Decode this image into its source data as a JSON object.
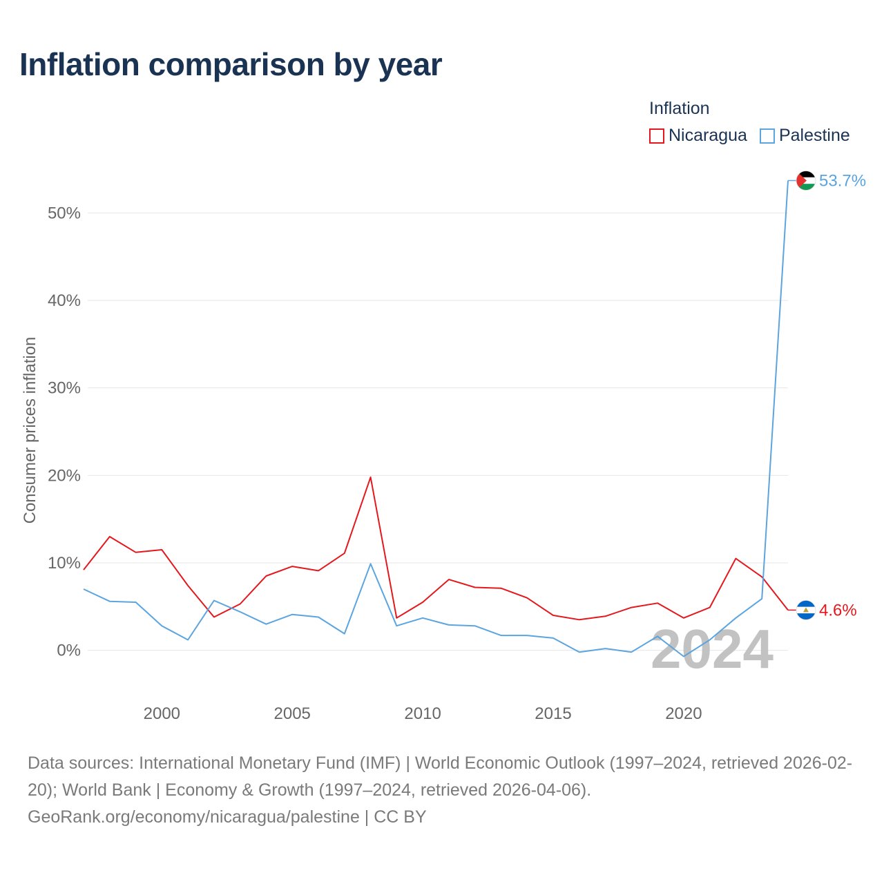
{
  "title": "Inflation comparison by year",
  "legend": {
    "title": "Inflation",
    "items": [
      {
        "label": "Nicaragua",
        "color": "#e4181c"
      },
      {
        "label": "Palestine",
        "color": "#5aa4e0"
      }
    ]
  },
  "source": {
    "line1": "Data sources: International Monetary Fund (IMF) | World Economic Outlook (1997–2024, retrieved 2026-02-20); World Bank | Economy & Growth (1997–2024, retrieved 2026-04-06).",
    "line2": "GeoRank.org/economy/nicaragua/palestine | CC BY"
  },
  "chart_data": {
    "type": "line",
    "title": "Inflation comparison by year",
    "xlabel": "",
    "ylabel": "Consumer prices inflation",
    "xlim": [
      1997,
      2024
    ],
    "ylim": [
      -5,
      55
    ],
    "x_ticks": [
      2000,
      2005,
      2010,
      2015,
      2020
    ],
    "y_ticks": [
      0,
      10,
      20,
      30,
      40,
      50
    ],
    "y_tick_labels": [
      "0%",
      "10%",
      "20%",
      "30%",
      "40%",
      "50%"
    ],
    "grid": true,
    "legend_position": "top-right",
    "year_label": "2024",
    "x": [
      1997,
      1998,
      1999,
      2000,
      2001,
      2002,
      2003,
      2004,
      2005,
      2006,
      2007,
      2008,
      2009,
      2010,
      2011,
      2012,
      2013,
      2014,
      2015,
      2016,
      2017,
      2018,
      2019,
      2020,
      2021,
      2022,
      2023,
      2024
    ],
    "series": [
      {
        "name": "Nicaragua",
        "color": "#e4181c",
        "end_label": "4.6%",
        "flag": "nicaragua-flag-icon",
        "values": [
          9.2,
          13.0,
          11.2,
          11.5,
          7.4,
          3.8,
          5.3,
          8.5,
          9.6,
          9.1,
          11.1,
          19.8,
          3.7,
          5.5,
          8.1,
          7.2,
          7.1,
          6.0,
          4.0,
          3.5,
          3.9,
          4.9,
          5.4,
          3.7,
          4.9,
          10.5,
          8.4,
          4.6
        ]
      },
      {
        "name": "Palestine",
        "color": "#5aa4e0",
        "end_label": "53.7%",
        "flag": "palestine-flag-icon",
        "values": [
          7.0,
          5.6,
          5.5,
          2.8,
          1.2,
          5.7,
          4.4,
          3.0,
          4.1,
          3.8,
          1.9,
          9.9,
          2.8,
          3.7,
          2.9,
          2.8,
          1.7,
          1.7,
          1.4,
          -0.2,
          0.2,
          -0.2,
          1.6,
          -0.7,
          1.2,
          3.7,
          5.9,
          53.7
        ]
      }
    ]
  }
}
